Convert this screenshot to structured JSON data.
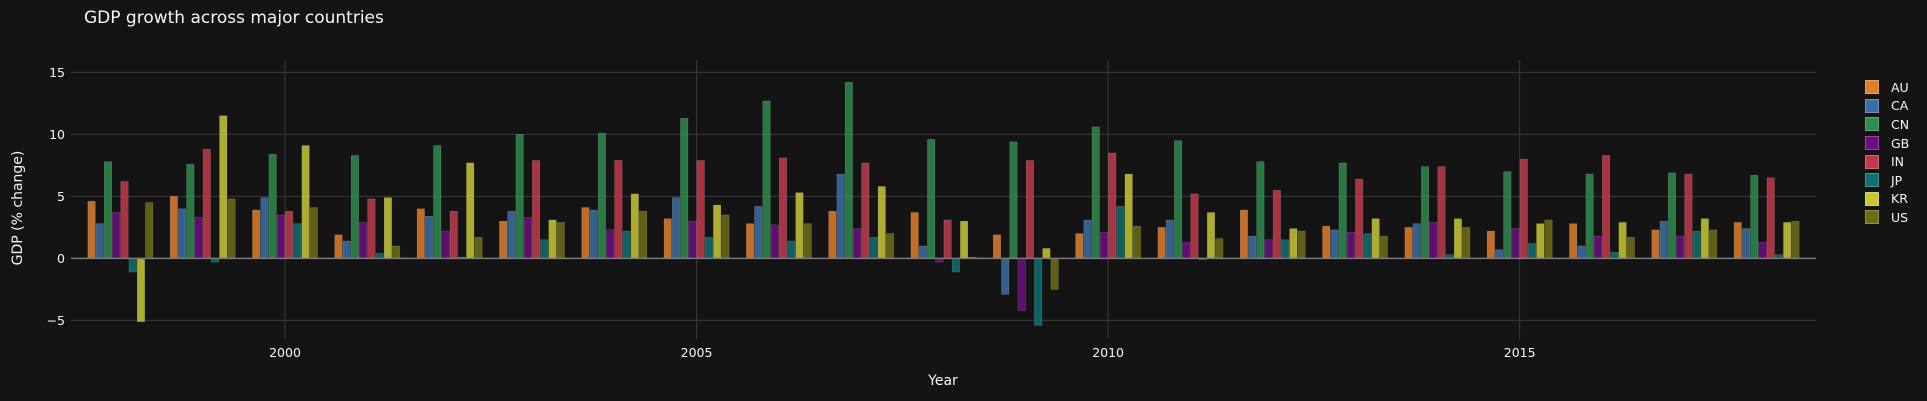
{
  "chart_data": {
    "type": "bar",
    "title": "GDP growth across major countries",
    "xlabel": "Year",
    "ylabel": "GDP (% change)",
    "x": [
      1998,
      1999,
      2000,
      2001,
      2002,
      2003,
      2004,
      2005,
      2006,
      2007,
      2008,
      2009,
      2010,
      2011,
      2012,
      2013,
      2014,
      2015,
      2016,
      2017,
      2018
    ],
    "xticks": [
      2000,
      2005,
      2010,
      2015
    ],
    "xtick_labels": [
      "2000",
      "2005",
      "2010",
      "2015"
    ],
    "xlim": [
      1997.4,
      2018.6
    ],
    "yticks": [
      -5,
      0,
      5,
      10,
      15
    ],
    "ytick_labels": [
      "−5",
      "0",
      "5",
      "10",
      "15"
    ],
    "ylim": [
      -6.5,
      16.0
    ],
    "grid": true,
    "legend_position": "right",
    "series": [
      {
        "name": "AU",
        "color": "#e07e2a",
        "values": [
          4.6,
          5.0,
          3.9,
          1.9,
          4.0,
          3.0,
          4.1,
          3.2,
          2.8,
          3.8,
          3.7,
          1.9,
          2.0,
          2.5,
          3.9,
          2.6,
          2.5,
          2.2,
          2.8,
          2.3,
          2.9
        ]
      },
      {
        "name": "CA",
        "color": "#3b6ea5",
        "values": [
          2.8,
          4.0,
          4.9,
          1.4,
          3.4,
          3.8,
          3.9,
          4.9,
          4.2,
          6.8,
          1.0,
          -2.9,
          3.1,
          3.1,
          1.8,
          2.3,
          2.8,
          0.7,
          1.0,
          3.0,
          2.4
        ]
      },
      {
        "name": "CN",
        "color": "#2e8b4e",
        "values": [
          7.8,
          7.6,
          8.4,
          8.3,
          9.1,
          10.0,
          10.1,
          11.3,
          12.7,
          14.2,
          9.6,
          9.4,
          10.6,
          9.5,
          7.8,
          7.7,
          7.4,
          7.0,
          6.8,
          6.9,
          6.7
        ]
      },
      {
        "name": "GB",
        "color": "#6a0d7e",
        "values": [
          3.7,
          3.3,
          3.5,
          2.9,
          2.2,
          3.3,
          2.3,
          3.0,
          2.7,
          2.4,
          -0.3,
          -4.2,
          2.1,
          1.3,
          1.5,
          2.1,
          2.9,
          2.4,
          1.8,
          1.8,
          1.3
        ]
      },
      {
        "name": "IN",
        "color": "#c0394b",
        "values": [
          6.2,
          8.8,
          3.8,
          4.8,
          3.8,
          7.9,
          7.9,
          7.9,
          8.1,
          7.7,
          3.1,
          7.9,
          8.5,
          5.2,
          5.5,
          6.4,
          7.4,
          8.0,
          8.3,
          6.8,
          6.5
        ]
      },
      {
        "name": "JP",
        "color": "#0e6f70",
        "values": [
          -1.1,
          -0.3,
          2.8,
          0.4,
          0.1,
          1.5,
          2.2,
          1.7,
          1.4,
          1.7,
          -1.1,
          -5.4,
          4.2,
          -0.1,
          1.5,
          2.0,
          0.3,
          1.2,
          0.5,
          2.2,
          0.3
        ]
      },
      {
        "name": "KR",
        "color": "#c8c834",
        "values": [
          -5.1,
          11.5,
          9.1,
          4.9,
          7.7,
          3.1,
          5.2,
          4.3,
          5.3,
          5.8,
          3.0,
          0.8,
          6.8,
          3.7,
          2.4,
          3.2,
          3.2,
          2.8,
          2.9,
          3.2,
          2.9
        ]
      },
      {
        "name": "US",
        "color": "#6d6d14",
        "values": [
          4.5,
          4.8,
          4.1,
          1.0,
          1.7,
          2.9,
          3.8,
          3.5,
          2.8,
          2.0,
          0.1,
          -2.5,
          2.6,
          1.6,
          2.2,
          1.8,
          2.5,
          3.1,
          1.7,
          2.3,
          3.0
        ]
      }
    ]
  }
}
